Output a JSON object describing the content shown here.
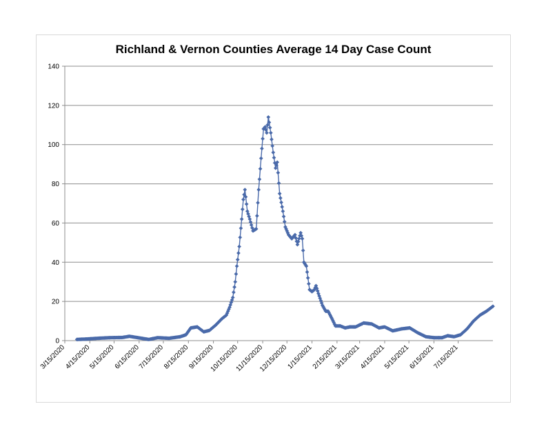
{
  "chart_data": {
    "type": "line",
    "title": "Richland & Vernon Counties Average 14 Day Case Count",
    "xlabel": "",
    "ylabel": "",
    "ylim": [
      0,
      140
    ],
    "yticks": [
      0,
      20,
      40,
      60,
      80,
      100,
      120,
      140
    ],
    "xlim": [
      "2020-03-15",
      "2021-08-27"
    ],
    "xtick_labels": [
      "3/15/2020",
      "4/15/2020",
      "5/15/2020",
      "6/15/2020",
      "7/15/2020",
      "8/15/2020",
      "9/15/2020",
      "10/15/2020",
      "11/15/2020",
      "12/15/2020",
      "1/15/2021",
      "2/15/2021",
      "3/15/2021",
      "4/15/2021",
      "5/15/2021",
      "6/15/2021",
      "7/15/2021"
    ],
    "xtick_dates": [
      "2020-03-15",
      "2020-04-15",
      "2020-05-15",
      "2020-06-15",
      "2020-07-15",
      "2020-08-15",
      "2020-09-15",
      "2020-10-15",
      "2020-11-15",
      "2020-12-15",
      "2021-01-15",
      "2021-02-15",
      "2021-03-15",
      "2021-04-15",
      "2021-05-15",
      "2021-06-15",
      "2021-07-15"
    ],
    "grid": true,
    "legend": "none",
    "series_color": "#4a6aaa",
    "marker": "diamond",
    "key_points": {
      "x": [
        "2020-03-30",
        "2020-04-10",
        "2020-04-25",
        "2020-05-10",
        "2020-05-25",
        "2020-06-03",
        "2020-06-15",
        "2020-06-27",
        "2020-07-08",
        "2020-07-22",
        "2020-08-05",
        "2020-08-12",
        "2020-08-18",
        "2020-08-26",
        "2020-09-03",
        "2020-09-10",
        "2020-09-18",
        "2020-09-25",
        "2020-10-01",
        "2020-10-05",
        "2020-10-09",
        "2020-10-12",
        "2020-10-14",
        "2020-10-17",
        "2020-10-20",
        "2020-10-22",
        "2020-10-24",
        "2020-10-27",
        "2020-10-30",
        "2020-11-03",
        "2020-11-07",
        "2020-11-10",
        "2020-11-13",
        "2020-11-16",
        "2020-11-18",
        "2020-11-20",
        "2020-11-22",
        "2020-11-25",
        "2020-11-28",
        "2020-12-01",
        "2020-12-03",
        "2020-12-06",
        "2020-12-10",
        "2020-12-13",
        "2020-12-17",
        "2020-12-21",
        "2020-12-25",
        "2020-12-28",
        "2021-01-01",
        "2021-01-03",
        "2021-01-05",
        "2021-01-08",
        "2021-01-12",
        "2021-01-15",
        "2021-01-18",
        "2021-01-20",
        "2021-01-23",
        "2021-01-28",
        "2021-02-01",
        "2021-02-04",
        "2021-02-09",
        "2021-02-13",
        "2021-02-19",
        "2021-02-25",
        "2021-03-03",
        "2021-03-10",
        "2021-03-20",
        "2021-03-30",
        "2021-04-08",
        "2021-04-15",
        "2021-04-25",
        "2021-05-06",
        "2021-05-16",
        "2021-05-26",
        "2021-06-05",
        "2021-06-15",
        "2021-06-25",
        "2021-07-02",
        "2021-07-10",
        "2021-07-18",
        "2021-07-26",
        "2021-08-03",
        "2021-08-11",
        "2021-08-19",
        "2021-08-27"
      ],
      "y": [
        0.6,
        0.8,
        1.2,
        1.5,
        1.6,
        2.2,
        1.4,
        0.6,
        1.5,
        1.2,
        2.0,
        3.0,
        6.5,
        7.0,
        4.5,
        5.2,
        8.0,
        11,
        13,
        17,
        22,
        30,
        38,
        48,
        62,
        72,
        77,
        66,
        62,
        56,
        57,
        77,
        93,
        108,
        109,
        106,
        114,
        106,
        96,
        88,
        91,
        75,
        66,
        58,
        54,
        52,
        54,
        49,
        55,
        52,
        40,
        38,
        26,
        25,
        26,
        28,
        24,
        18,
        15,
        15,
        11,
        7.5,
        7.5,
        6.5,
        7.0,
        7.0,
        9.0,
        8.5,
        6.5,
        7.0,
        5.0,
        6.0,
        6.5,
        4.0,
        2.0,
        1.5,
        1.5,
        2.5,
        2.0,
        3.0,
        6.0,
        10,
        13,
        15,
        17.5
      ]
    }
  }
}
